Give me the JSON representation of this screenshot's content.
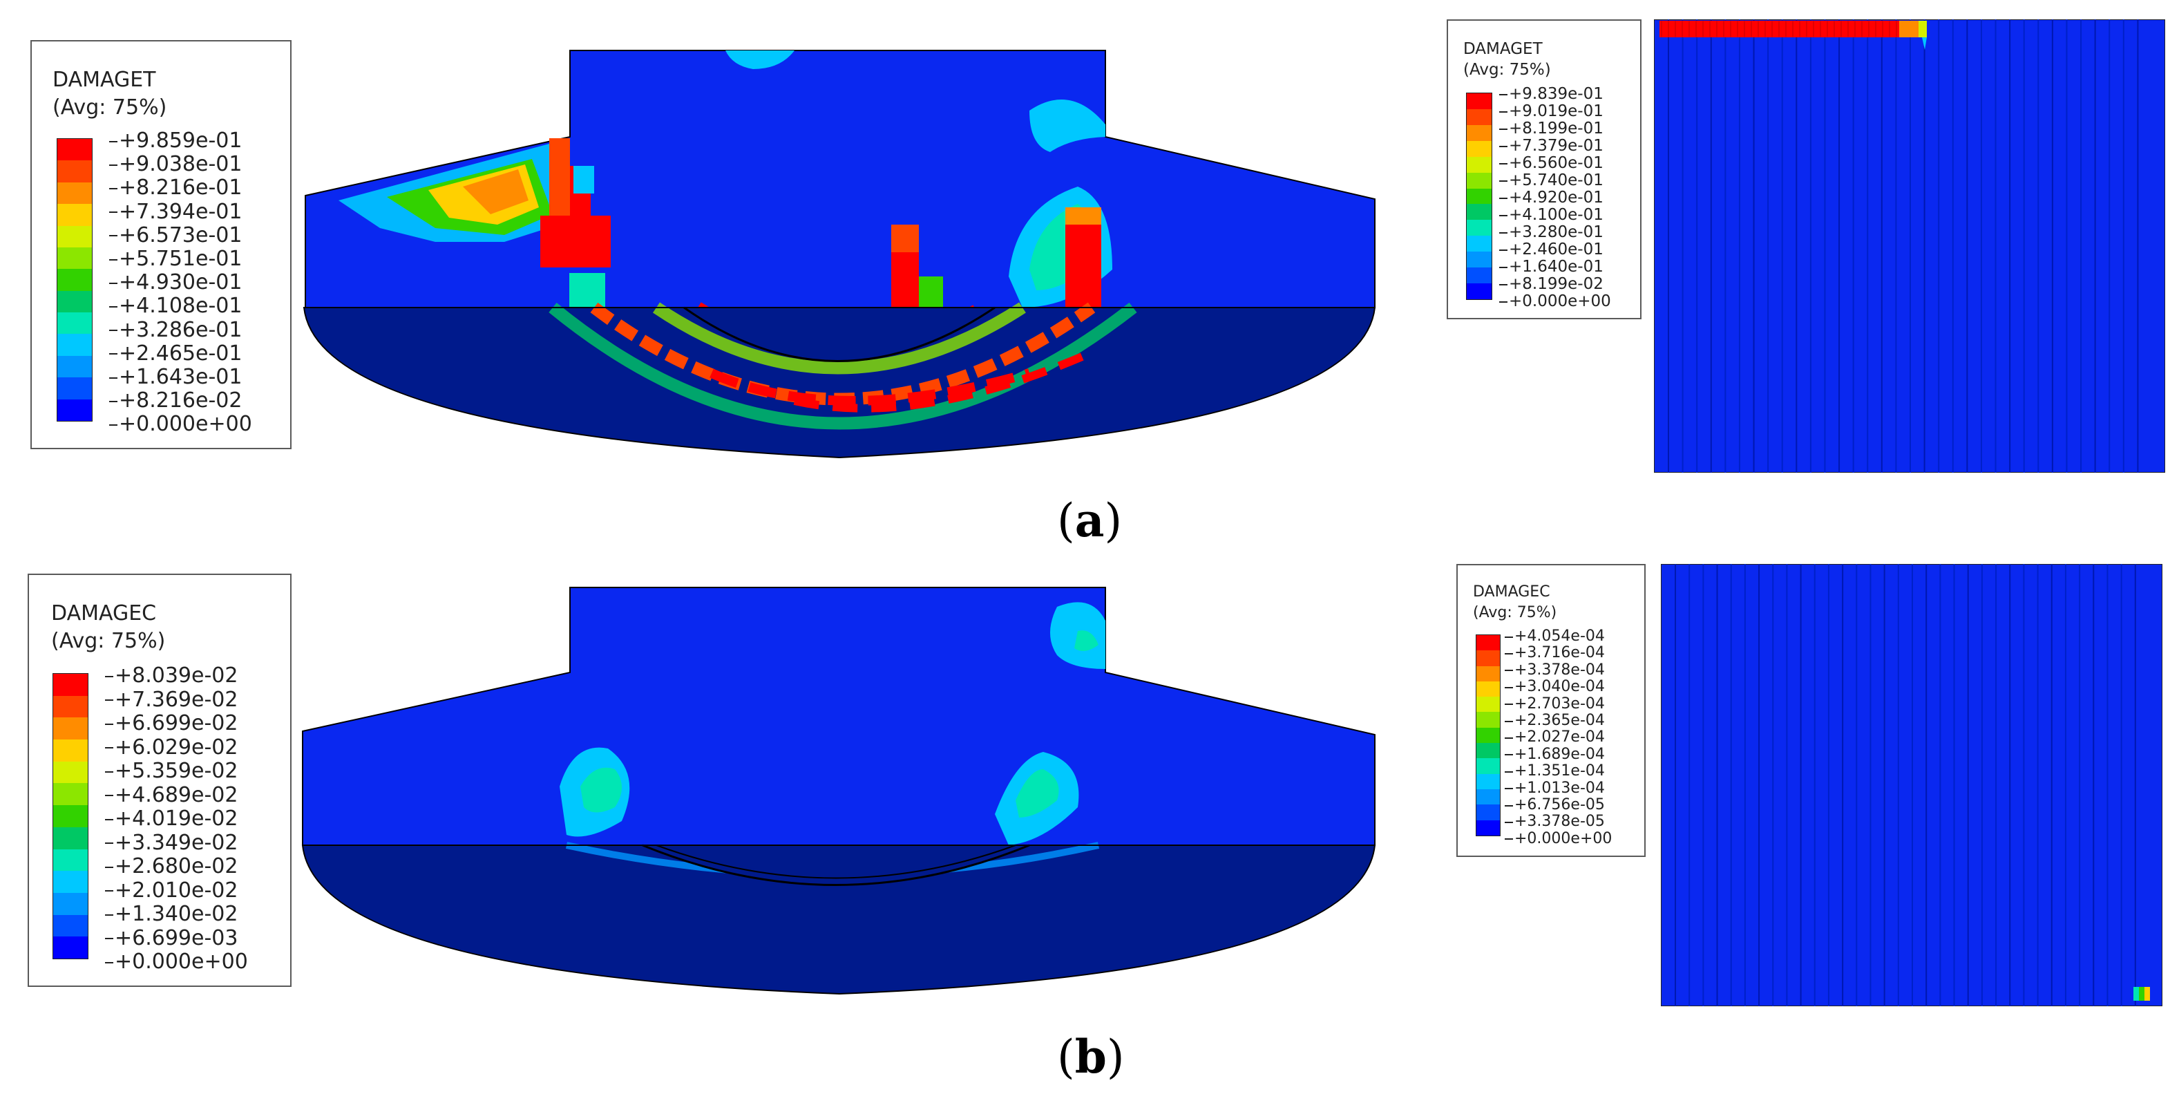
{
  "panel_a": {
    "caption_open": "(",
    "caption_letter": "a",
    "caption_close": ")",
    "legend_main": {
      "title": "DAMAGET",
      "subtitle": "(Avg: 75%)",
      "values": [
        "+9.859e-01",
        "+9.038e-01",
        "+8.216e-01",
        "+7.394e-01",
        "+6.573e-01",
        "+5.751e-01",
        "+4.930e-01",
        "+4.108e-01",
        "+3.286e-01",
        "+2.465e-01",
        "+1.643e-01",
        "+8.216e-02",
        "+0.000e+00"
      ]
    },
    "legend_detail": {
      "title": "DAMAGET",
      "subtitle": "(Avg: 75%)",
      "values": [
        "+9.839e-01",
        "+9.019e-01",
        "+8.199e-01",
        "+7.379e-01",
        "+6.560e-01",
        "+5.740e-01",
        "+4.920e-01",
        "+4.100e-01",
        "+3.280e-01",
        "+2.460e-01",
        "+1.640e-01",
        "+8.199e-02",
        "+0.000e+00"
      ]
    }
  },
  "panel_b": {
    "caption_open": "(",
    "caption_letter": "b",
    "caption_close": ")",
    "legend_main": {
      "title": "DAMAGEC",
      "subtitle": "(Avg: 75%)",
      "values": [
        "+8.039e-02",
        "+7.369e-02",
        "+6.699e-02",
        "+6.029e-02",
        "+5.359e-02",
        "+4.689e-02",
        "+4.019e-02",
        "+3.349e-02",
        "+2.680e-02",
        "+2.010e-02",
        "+1.340e-02",
        "+6.699e-03",
        "+0.000e+00"
      ]
    },
    "legend_detail": {
      "title": "DAMAGEC",
      "subtitle": "(Avg: 75%)",
      "values": [
        "+4.054e-04",
        "+3.716e-04",
        "+3.378e-04",
        "+3.040e-04",
        "+2.703e-04",
        "+2.365e-04",
        "+2.027e-04",
        "+1.689e-04",
        "+1.351e-04",
        "+1.013e-04",
        "+6.756e-05",
        "+3.378e-05",
        "+0.000e+00"
      ]
    }
  },
  "colors": {
    "scale": [
      "#ff0000",
      "#ff4500",
      "#ff8c00",
      "#ffd000",
      "#d4f000",
      "#8ce600",
      "#32d200",
      "#00c864",
      "#00e6b4",
      "#00c8ff",
      "#0096ff",
      "#0050ff",
      "#0000ff"
    ],
    "shadow_blue": "#001a8c",
    "base_blue": "#0a28f0"
  }
}
